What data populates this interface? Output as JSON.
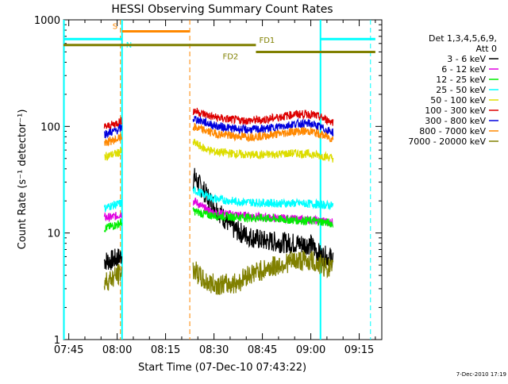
{
  "chart_data": {
    "type": "line",
    "title": "HESSI Observing Summary Count Rates",
    "xlabel": "Start Time (07-Dec-10 07:43:22)",
    "ylabel": "Count Rate (s⁻¹ detector⁻¹)",
    "y_scale": "log",
    "ylim": [
      1,
      1000
    ],
    "xlim": [
      "07:43:22",
      "09:22:00"
    ],
    "x_ticks": [
      "07:45",
      "08:00",
      "08:15",
      "08:30",
      "08:45",
      "09:00",
      "09:15"
    ],
    "y_ticks": [
      "1",
      "10",
      "100",
      "1000"
    ],
    "legend_header": [
      "Det 1,3,4,5,6,9,",
      "Att 0"
    ],
    "legend_placement": "right",
    "timestamp": "7-Dec-2010 17:19",
    "series": [
      {
        "name": "3 - 6 keV",
        "color": "#000000",
        "x": [
          "07:56",
          "07:58",
          "08:00",
          "08:01",
          "08:24",
          "08:26",
          "08:28",
          "08:30",
          "08:33",
          "08:36",
          "08:40",
          "08:45",
          "08:50",
          "08:55",
          "09:00",
          "09:03",
          "09:05",
          "09:07"
        ],
        "y": [
          5.5,
          5.5,
          5.8,
          6,
          33,
          27,
          22,
          18,
          14,
          11,
          9.5,
          8.5,
          8.2,
          8,
          7.8,
          6.2,
          6,
          5.8
        ]
      },
      {
        "name": "6 - 12 keV",
        "color": "#e000e0",
        "x": [
          "07:56",
          "07:58",
          "08:00",
          "08:01",
          "08:24",
          "08:27",
          "08:30",
          "08:35",
          "08:40",
          "08:45",
          "08:50",
          "08:55",
          "09:00",
          "09:03",
          "09:05",
          "09:07"
        ],
        "y": [
          14,
          14,
          14.5,
          15,
          20,
          17,
          15.5,
          15,
          14.5,
          14,
          13.8,
          13.5,
          13.2,
          13,
          12.8,
          12.5
        ]
      },
      {
        "name": "12 - 25 keV",
        "color": "#00ee00",
        "x": [
          "07:56",
          "07:58",
          "08:00",
          "08:01",
          "08:24",
          "08:27",
          "08:30",
          "08:35",
          "08:40",
          "08:45",
          "08:50",
          "08:55",
          "09:00",
          "09:03",
          "09:05",
          "09:07"
        ],
        "y": [
          11,
          11.5,
          12,
          12.5,
          16,
          15,
          14.5,
          14.2,
          14,
          13.8,
          13.5,
          13.2,
          13,
          12.8,
          12.5,
          12.2
        ]
      },
      {
        "name": "25 - 50 keV",
        "color": "#00ffff",
        "x": [
          "07:56",
          "07:58",
          "08:00",
          "08:01",
          "08:24",
          "08:27",
          "08:30",
          "08:35",
          "08:40",
          "08:45",
          "08:50",
          "08:55",
          "09:00",
          "09:03",
          "09:05",
          "09:07"
        ],
        "y": [
          17,
          18,
          18.5,
          19,
          25,
          23,
          21,
          20,
          19.5,
          19.2,
          19,
          19,
          18.8,
          18.5,
          18.3,
          18
        ]
      },
      {
        "name": "50 - 100 keV",
        "color": "#dddd00",
        "x": [
          "07:56",
          "07:58",
          "08:00",
          "08:01",
          "08:24",
          "08:27",
          "08:30",
          "08:35",
          "08:40",
          "08:45",
          "08:50",
          "08:55",
          "09:00",
          "09:03",
          "09:05",
          "09:07"
        ],
        "y": [
          52,
          54,
          56,
          58,
          70,
          62,
          58,
          56,
          54,
          54,
          55,
          56,
          55,
          53,
          52,
          50
        ]
      },
      {
        "name": "100 - 300 keV",
        "color": "#dd0000",
        "x": [
          "07:56",
          "07:58",
          "08:00",
          "08:01",
          "08:24",
          "08:27",
          "08:30",
          "08:35",
          "08:40",
          "08:45",
          "08:50",
          "08:55",
          "09:00",
          "09:03",
          "09:05",
          "09:07"
        ],
        "y": [
          98,
          102,
          108,
          112,
          140,
          130,
          122,
          116,
          113,
          115,
          122,
          130,
          130,
          122,
          115,
          110
        ]
      },
      {
        "name": "300 - 800 keV",
        "color": "#0000dd",
        "x": [
          "07:56",
          "07:58",
          "08:00",
          "08:01",
          "08:24",
          "08:27",
          "08:30",
          "08:35",
          "08:40",
          "08:45",
          "08:50",
          "08:55",
          "09:00",
          "09:03",
          "09:05",
          "09:07"
        ],
        "y": [
          85,
          88,
          92,
          96,
          118,
          110,
          102,
          96,
          93,
          94,
          99,
          106,
          106,
          98,
          92,
          88
        ]
      },
      {
        "name": "800 - 7000 keV",
        "color": "#ff8800",
        "x": [
          "07:56",
          "07:58",
          "08:00",
          "08:01",
          "08:24",
          "08:27",
          "08:30",
          "08:35",
          "08:40",
          "08:45",
          "08:50",
          "08:55",
          "09:00",
          "09:03",
          "09:05",
          "09:07"
        ],
        "y": [
          70,
          73,
          76,
          78,
          98,
          92,
          86,
          82,
          80,
          81,
          85,
          90,
          90,
          84,
          80,
          76
        ]
      },
      {
        "name": "7000 - 20000 keV",
        "color": "#808000",
        "x": [
          "07:56",
          "07:58",
          "08:00",
          "08:01",
          "08:24",
          "08:27",
          "08:30",
          "08:35",
          "08:38",
          "08:40",
          "08:45",
          "08:50",
          "08:55",
          "09:00",
          "09:03",
          "09:05",
          "09:07"
        ],
        "y": [
          3.5,
          3.7,
          4,
          4.2,
          4.5,
          3.5,
          3.3,
          3.3,
          3.5,
          4,
          4.5,
          5,
          5.5,
          5.5,
          5,
          4.8,
          4.5
        ]
      }
    ],
    "markers": {
      "solid_vlines": [
        "07:43:30",
        "08:01:30",
        "09:03:00"
      ],
      "dashed_vlines": [
        "08:01:00",
        "08:22:30",
        "09:18:30"
      ],
      "orange_vlines": [
        "08:22:30"
      ],
      "segments": [
        {
          "label": "",
          "color": "#00ffff",
          "y": 660,
          "x_start": "07:43:22",
          "x_end": "08:01:30"
        },
        {
          "label": "",
          "color": "#00ffff",
          "y": 660,
          "x_start": "09:03:00",
          "x_end": "09:20:00"
        },
        {
          "label": "S",
          "color": "#ff8800",
          "y": 780,
          "x_start": "08:01:30",
          "x_end": "08:22:30"
        },
        {
          "label": "N",
          "color": "#00ffff",
          "y": 660,
          "x_start": "08:01:30",
          "x_end": "08:01:30"
        },
        {
          "label": "FD1",
          "color": "#808000",
          "y": 580,
          "x_start": "07:43:22",
          "x_end": "08:43:00"
        },
        {
          "label": "FD2",
          "color": "#808000",
          "y": 500,
          "x_start": "08:43:00",
          "x_end": "09:20:00"
        }
      ]
    }
  }
}
